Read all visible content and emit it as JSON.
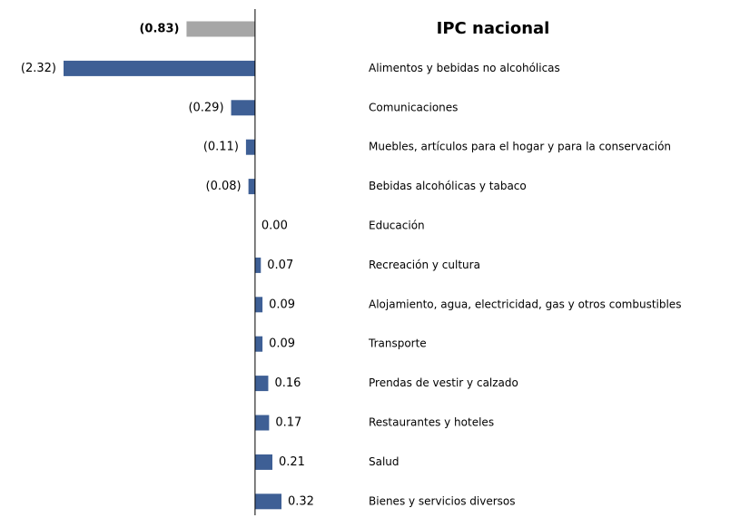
{
  "chart_data": {
    "type": "hbar",
    "categories": [
      "IPC nacional",
      "Alimentos y bebidas no alcohólicas",
      "Comunicaciones",
      "Muebles, artículos para el hogar y para la conservación",
      "Bebidas alcohólicas y tabaco",
      "Educación",
      "Recreación y cultura",
      "Alojamiento, agua, electricidad, gas y otros combustibles",
      "Transporte",
      "Prendas de vestir y calzado",
      "Restaurantes y hoteles",
      "Salud",
      "Bienes y servicios diversos"
    ],
    "values": [
      -0.83,
      -2.32,
      -0.29,
      -0.11,
      -0.08,
      0,
      0.07,
      0.09,
      0.09,
      0.16,
      0.17,
      0.21,
      0.32
    ],
    "value_labels": [
      "(0.83)",
      "(2.32)",
      "(0.29)",
      "(0.11)",
      "(0.08)",
      "0.00",
      "0.07",
      "0.09",
      "0.09",
      "0.16",
      "0.17",
      "0.21",
      "0.32"
    ],
    "colors": [
      "#a6a6a6",
      "#3e5f95",
      "#3e5f95",
      "#3e5f95",
      "#3e5f95",
      "#3e5f95",
      "#3e5f95",
      "#3e5f95",
      "#3e5f95",
      "#3e5f95",
      "#3e5f95",
      "#3e5f95",
      "#3e5f95"
    ],
    "xlim": [
      -2.32,
      0.32
    ]
  }
}
